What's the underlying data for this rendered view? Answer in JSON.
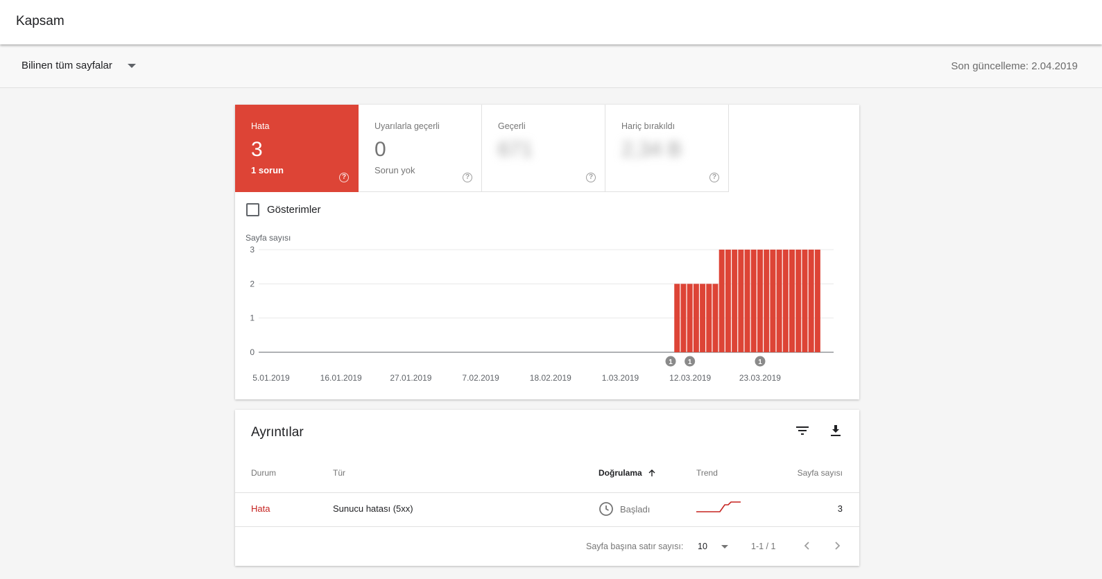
{
  "header": {
    "title": "Kapsam"
  },
  "filter": {
    "selected": "Bilinen tüm sayfalar",
    "last_update": "Son güncelleme: 2.04.2019"
  },
  "tiles": [
    {
      "label": "Hata",
      "value": "3",
      "sub": "1 sorun"
    },
    {
      "label": "Uyarılarla geçerli",
      "value": "0",
      "sub": "Sorun yok"
    },
    {
      "label": "Geçerli",
      "value": "671",
      "sub": ""
    },
    {
      "label": "Hariç bırakıldı",
      "value": "2,34 B",
      "sub": ""
    }
  ],
  "impressions": {
    "label": "Gösterimler"
  },
  "chart_data": {
    "type": "bar",
    "ylabel": "Sayfa sayısı",
    "ylim": [
      0,
      3
    ],
    "y_ticks": [
      0,
      1,
      2,
      3
    ],
    "x_tick_labels": [
      "5.01.2019",
      "16.01.2019",
      "27.01.2019",
      "7.02.2019",
      "18.02.2019",
      "1.03.2019",
      "12.03.2019",
      "23.03.2019"
    ],
    "x_start": "2019-01-04",
    "bar_color": "#dd4436",
    "series": [
      {
        "from": "2019-03-10",
        "to": "2019-03-16",
        "value": 2
      },
      {
        "from": "2019-03-17",
        "to": "2019-04-01",
        "value": 3
      }
    ],
    "annotations": [
      {
        "date": "2019-03-09",
        "label": "1"
      },
      {
        "date": "2019-03-12",
        "label": "1"
      },
      {
        "date": "2019-03-23",
        "label": "1"
      }
    ]
  },
  "details": {
    "title": "Ayrıntılar",
    "columns": {
      "status": "Durum",
      "type": "Tür",
      "validation": "Doğrulama",
      "trend": "Trend",
      "count": "Sayfa sayısı"
    },
    "rows": [
      {
        "status": "Hata",
        "type": "Sunucu hatası (5xx)",
        "validation": "Başladı",
        "count": "3"
      }
    ],
    "footer": {
      "rows_per_page_label": "Sayfa başına satır sayısı:",
      "rows_per_page": "10",
      "range": "1-1 / 1"
    }
  },
  "colors": {
    "error": "#dd4436",
    "error_text": "#c5221f"
  }
}
